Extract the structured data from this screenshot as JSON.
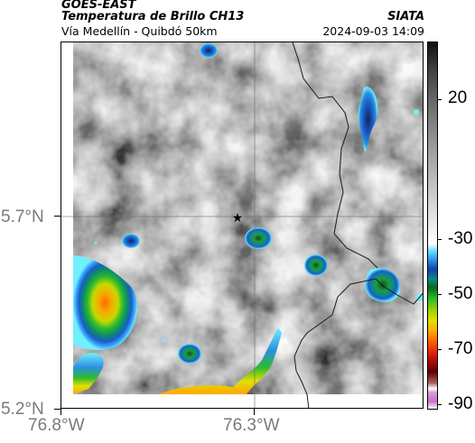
{
  "header": {
    "satellite": "GOES-EAST",
    "product": "Temperatura de Brillo CH13",
    "region": "Vía Medellín - Quibdó 50km",
    "organization": "SIATA",
    "datetime": "2024-09-03 14:09"
  },
  "map": {
    "latitude_labels": [
      "5.7°N",
      "5.2°N"
    ],
    "longitude_labels": [
      "76.8°W",
      "76.3°W"
    ],
    "marker_icon": "star-icon",
    "gridlines": true
  },
  "colorbar": {
    "tick_labels": [
      "20",
      "-30",
      "-50",
      "-70",
      "-90"
    ],
    "colors": {
      "warm": "#ffffff",
      "mid": "#7a7a7a",
      "cold_cyan": "#5fe0ff",
      "blue": "#2a90e0",
      "green": "#2dbb2d",
      "yellow": "#e0e000",
      "orange": "#ff5500",
      "red": "#cc1010",
      "dark_red": "#5a0000",
      "magenta": "#c86fc8"
    }
  }
}
